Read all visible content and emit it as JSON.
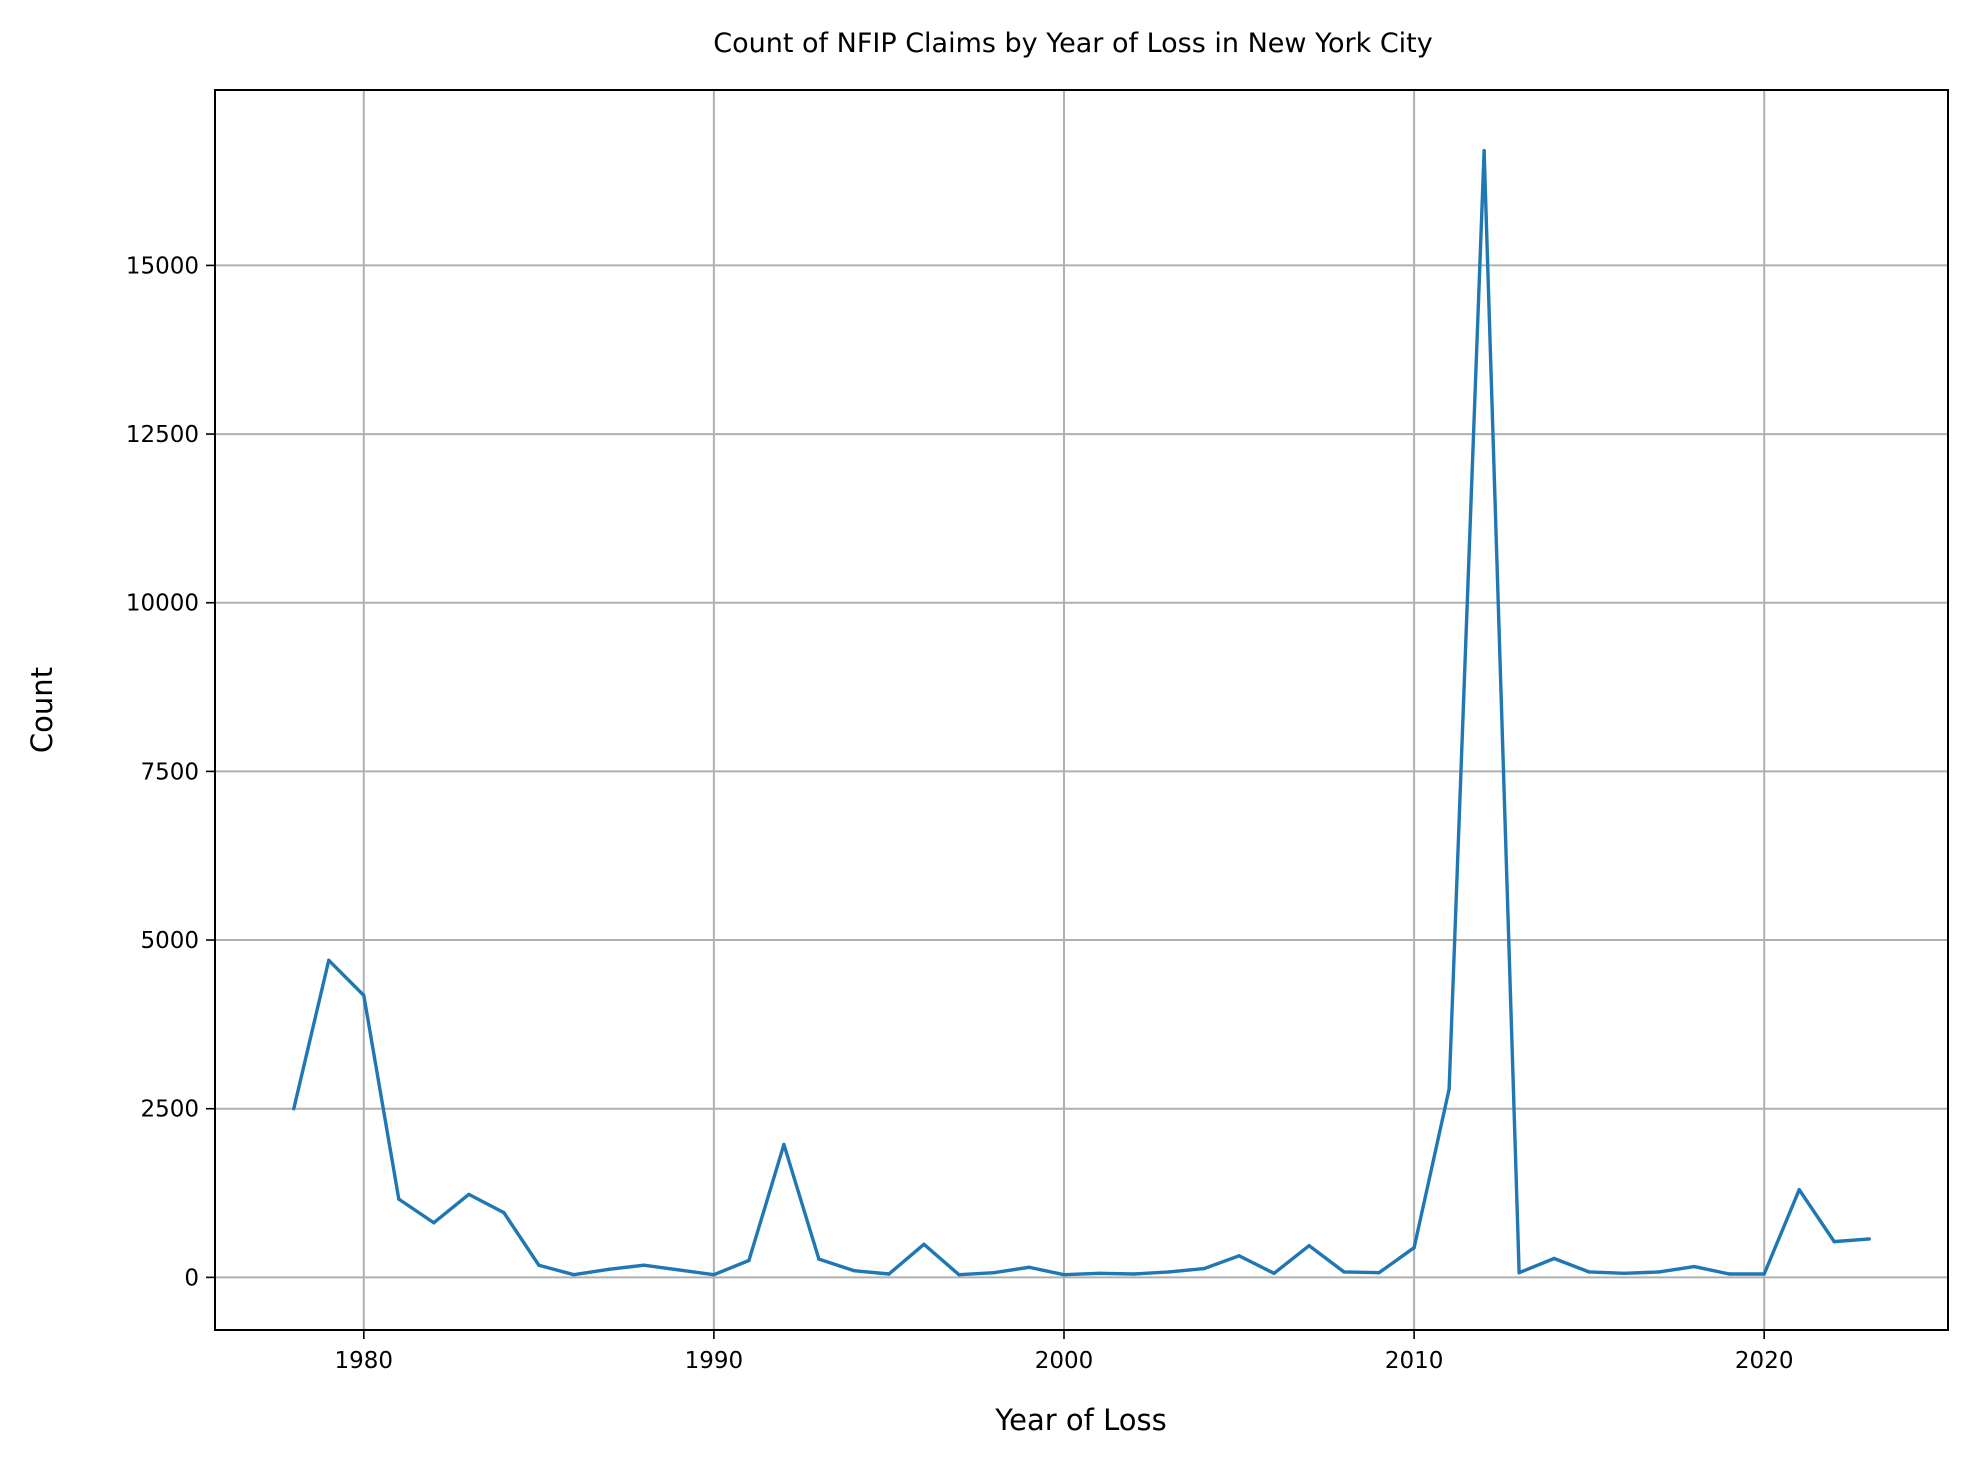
{
  "chart_data": {
    "type": "line",
    "title": "Count of NFIP Claims by Year of Loss in New York City",
    "xlabel": "Year of Loss",
    "ylabel": "Count",
    "xlim": [
      1975.75,
      2025.25
    ],
    "ylim": [
      -780,
      17600
    ],
    "xticks": [
      1980,
      1990,
      2000,
      2010,
      2020
    ],
    "yticks": [
      0,
      2500,
      5000,
      7500,
      10000,
      12500,
      15000
    ],
    "grid": true,
    "line_color": "#1f77b4",
    "series": [
      {
        "x": [
          1978,
          1979,
          1980,
          1981,
          1982,
          1983,
          1984,
          1985,
          1986,
          1987,
          1988,
          1989,
          1990,
          1991,
          1992,
          1993,
          1994,
          1995,
          1996,
          1997,
          1998,
          1999,
          2000,
          2001,
          2002,
          2003,
          2004,
          2005,
          2006,
          2007,
          2008,
          2009,
          2010,
          2011,
          2012,
          2013,
          2014,
          2015,
          2016,
          2017,
          2018,
          2019,
          2020,
          2021,
          2022,
          2023
        ],
        "values": [
          2500,
          4700,
          4180,
          1160,
          810,
          1230,
          960,
          180,
          40,
          120,
          180,
          110,
          40,
          250,
          1970,
          270,
          100,
          50,
          490,
          40,
          70,
          150,
          40,
          60,
          50,
          80,
          130,
          320,
          60,
          470,
          80,
          70,
          440,
          2790,
          16700,
          70,
          280,
          80,
          60,
          80,
          160,
          50,
          50,
          1300,
          530,
          570
        ]
      }
    ]
  }
}
